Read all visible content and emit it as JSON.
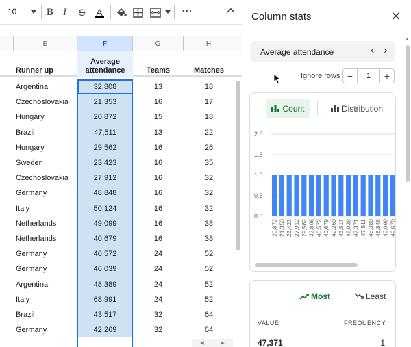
{
  "toolbar": {
    "font_size": "10",
    "bold_label": "B",
    "italic_label": "I",
    "strike_label": "S",
    "text_color_label": "A",
    "more_label": "⋯",
    "icons": [
      "paint-bucket-icon",
      "borders-icon",
      "merge-icon",
      "collapse-icon"
    ]
  },
  "sheet": {
    "columns": [
      "E",
      "F",
      "G",
      "H"
    ],
    "selected_column": "F",
    "headers": {
      "runner_up": "Runner up",
      "avg_attendance": "Average attendance",
      "teams": "Teams",
      "matches": "Matches"
    },
    "rows": [
      {
        "runner_up": "Argentina",
        "attendance": "32,808",
        "teams": "13",
        "matches": "18"
      },
      {
        "runner_up": "Czechoslovakia",
        "attendance": "21,353",
        "teams": "16",
        "matches": "17"
      },
      {
        "runner_up": "Hungary",
        "attendance": "20,872",
        "teams": "15",
        "matches": "18"
      },
      {
        "runner_up": "Brazil",
        "attendance": "47,511",
        "teams": "13",
        "matches": "22"
      },
      {
        "runner_up": "Hungary",
        "attendance": "29,562",
        "teams": "16",
        "matches": "26"
      },
      {
        "runner_up": "Sweden",
        "attendance": "23,423",
        "teams": "16",
        "matches": "35"
      },
      {
        "runner_up": "Czechoslovakia",
        "attendance": "27,912",
        "teams": "16",
        "matches": "32"
      },
      {
        "runner_up": "Germany",
        "attendance": "48,848",
        "teams": "16",
        "matches": "32"
      },
      {
        "runner_up": "Italy",
        "attendance": "50,124",
        "teams": "16",
        "matches": "32"
      },
      {
        "runner_up": "Netherlands",
        "attendance": "49,099",
        "teams": "16",
        "matches": "38"
      },
      {
        "runner_up": "Netherlands",
        "attendance": "40,679",
        "teams": "16",
        "matches": "38"
      },
      {
        "runner_up": "Germany",
        "attendance": "40,572",
        "teams": "24",
        "matches": "52"
      },
      {
        "runner_up": "Germany",
        "attendance": "46,039",
        "teams": "24",
        "matches": "52"
      },
      {
        "runner_up": "Argentina",
        "attendance": "48,389",
        "teams": "24",
        "matches": "52"
      },
      {
        "runner_up": "Italy",
        "attendance": "68,991",
        "teams": "24",
        "matches": "52"
      },
      {
        "runner_up": "Brazil",
        "attendance": "43,517",
        "teams": "32",
        "matches": "64"
      },
      {
        "runner_up": "Germany",
        "attendance": "42,269",
        "teams": "32",
        "matches": "64"
      }
    ]
  },
  "panel": {
    "title": "Column stats",
    "close_label": "✕",
    "column_name": "Average attendance",
    "prev_label": "‹",
    "next_label": "›",
    "ignore_rows_label": "Ignore rows",
    "ignore_rows_value": "1",
    "minus_label": "−",
    "plus_label": "+",
    "tab_count": "Count",
    "tab_distribution": "Distribution",
    "tab_most": "Most",
    "tab_least": "Least",
    "freq_header_value": "VALUE",
    "freq_header_frequency": "FREQUENCY",
    "freq_top_value": "47,371",
    "freq_top_count": "1",
    "accent_color": "#1a73e8",
    "bar_color": "#4285f4",
    "green_color": "#137333"
  },
  "chart_data": {
    "type": "bar",
    "categories": [
      "20,872",
      "21,353",
      "23,423",
      "27,912",
      "29,562",
      "32,808",
      "40,572",
      "40,679",
      "42,269",
      "43,517",
      "46,039",
      "47,371",
      "47,511",
      "48,389",
      "48,848",
      "49,099",
      "49,670"
    ],
    "values": [
      1,
      1,
      1,
      1,
      1,
      1,
      1,
      1,
      1,
      1,
      1,
      1,
      1,
      1,
      1,
      1,
      1
    ],
    "y_ticks": [
      "0.0",
      "0.5",
      "1.0",
      "1.5",
      "2.0"
    ],
    "ylim": [
      0,
      2
    ],
    "grid": true,
    "title": "",
    "xlabel": "",
    "ylabel": ""
  }
}
